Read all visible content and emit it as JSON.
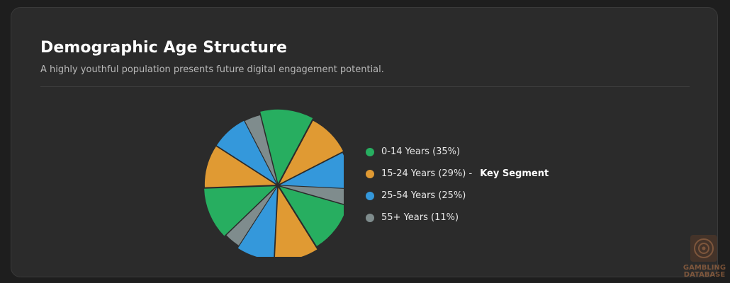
{
  "header": {
    "title": "Demographic Age Structure",
    "subtitle": "A highly youthful population presents future digital engagement potential."
  },
  "chart_data": {
    "type": "pie",
    "categories": [
      "0-14 Years",
      "15-24 Years",
      "25-54 Years",
      "55+ Years"
    ],
    "values": [
      35,
      29,
      25,
      11
    ],
    "colors": [
      "#27ae60",
      "#e09a33",
      "#3498db",
      "#7f8c8d"
    ],
    "exploded": true,
    "legend_position": "right"
  },
  "legend": {
    "items": [
      {
        "label": "0-14 Years (35%)",
        "color": "#27ae60",
        "note": ""
      },
      {
        "label": "15-24 Years (29%) -",
        "color": "#e09a33",
        "note": "Key Segment"
      },
      {
        "label": "25-54 Years (25%)",
        "color": "#3498db",
        "note": ""
      },
      {
        "label": "55+ Years (11%)",
        "color": "#7f8c8d",
        "note": ""
      }
    ]
  },
  "watermark": {
    "line1": "GAMBLING",
    "line2": "DATABASE"
  }
}
